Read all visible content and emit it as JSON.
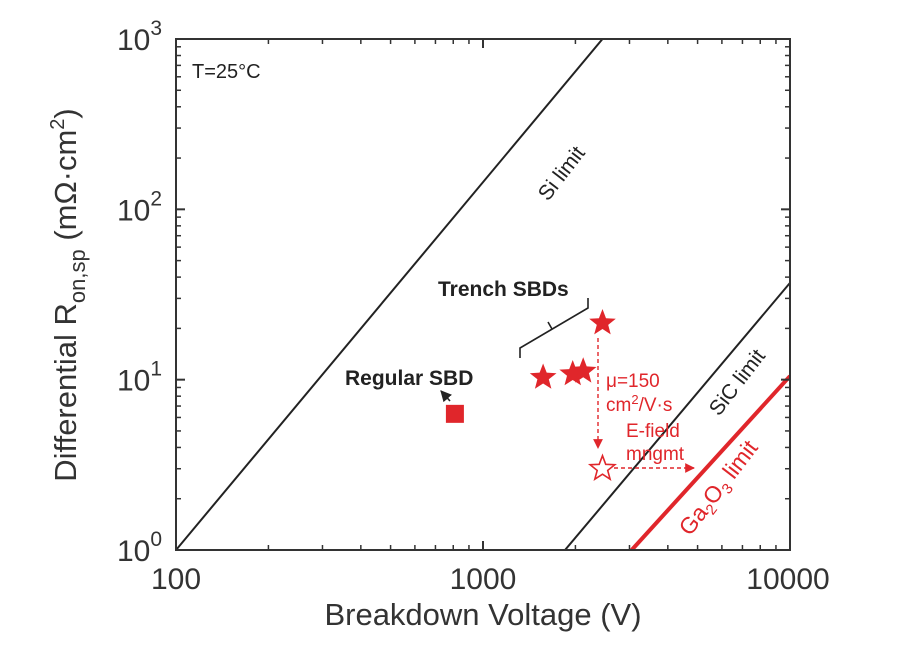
{
  "chart_data": {
    "type": "scatter",
    "xlabel": "Breakdown Voltage (V)",
    "ylabel": {
      "main": "Differential R",
      "sub": "on,sp",
      "unit_open": " (mΩ·cm",
      "unit_sup": "2",
      "unit_close": ")"
    },
    "x_scale": "log",
    "y_scale": "log",
    "xlim": [
      100,
      10000
    ],
    "ylim": [
      1,
      1000
    ],
    "grid": false,
    "x_ticks": [
      {
        "value": 100,
        "label": "100"
      },
      {
        "value": 1000,
        "label": "1000"
      },
      {
        "value": 10000,
        "label": "10000"
      }
    ],
    "y_ticks": [
      {
        "value": 1,
        "base": "10",
        "exp": "0"
      },
      {
        "value": 10,
        "base": "10",
        "exp": "1"
      },
      {
        "value": 100,
        "base": "10",
        "exp": "2"
      },
      {
        "value": 1000,
        "base": "10",
        "exp": "3"
      }
    ],
    "limit_lines": [
      {
        "label": "Si limit",
        "color": "#222222",
        "points": [
          [
            100,
            1
          ],
          [
            2450,
            1000
          ]
        ]
      },
      {
        "label": "SiC limit",
        "color": "#222222",
        "points": [
          [
            1850,
            1
          ],
          [
            10000,
            37
          ]
        ]
      },
      {
        "label_parts": [
          "Ga",
          "2",
          "O",
          "3",
          " limit"
        ],
        "color": "#e0262b",
        "points": [
          [
            3050,
            1
          ],
          [
            10000,
            10.5
          ]
        ]
      }
    ],
    "series": [
      {
        "name": "Regular SBD",
        "marker": "square",
        "color": "#e0262b",
        "points": [
          [
            810,
            6.3
          ]
        ]
      },
      {
        "name": "Trench SBDs",
        "marker": "star",
        "color": "#e0262b",
        "points": [
          [
            1570,
            10.3
          ],
          [
            1960,
            10.8
          ],
          [
            2120,
            11.2
          ],
          [
            2450,
            21.5
          ]
        ]
      },
      {
        "name": "",
        "marker": "star-open",
        "color": "#e0262b",
        "points": [
          [
            2450,
            3.0
          ]
        ]
      }
    ],
    "annotations": {
      "temperature": "T=25°C",
      "mobility_line1": "μ=150",
      "mobility_line2_base": "cm",
      "mobility_line2_sup": "2",
      "mobility_line2_rest": "/V·s",
      "efield_line1": "E-field",
      "efield_line2": "mngmt"
    },
    "colors": {
      "axis": "#333333",
      "accent": "#e0262b"
    }
  }
}
